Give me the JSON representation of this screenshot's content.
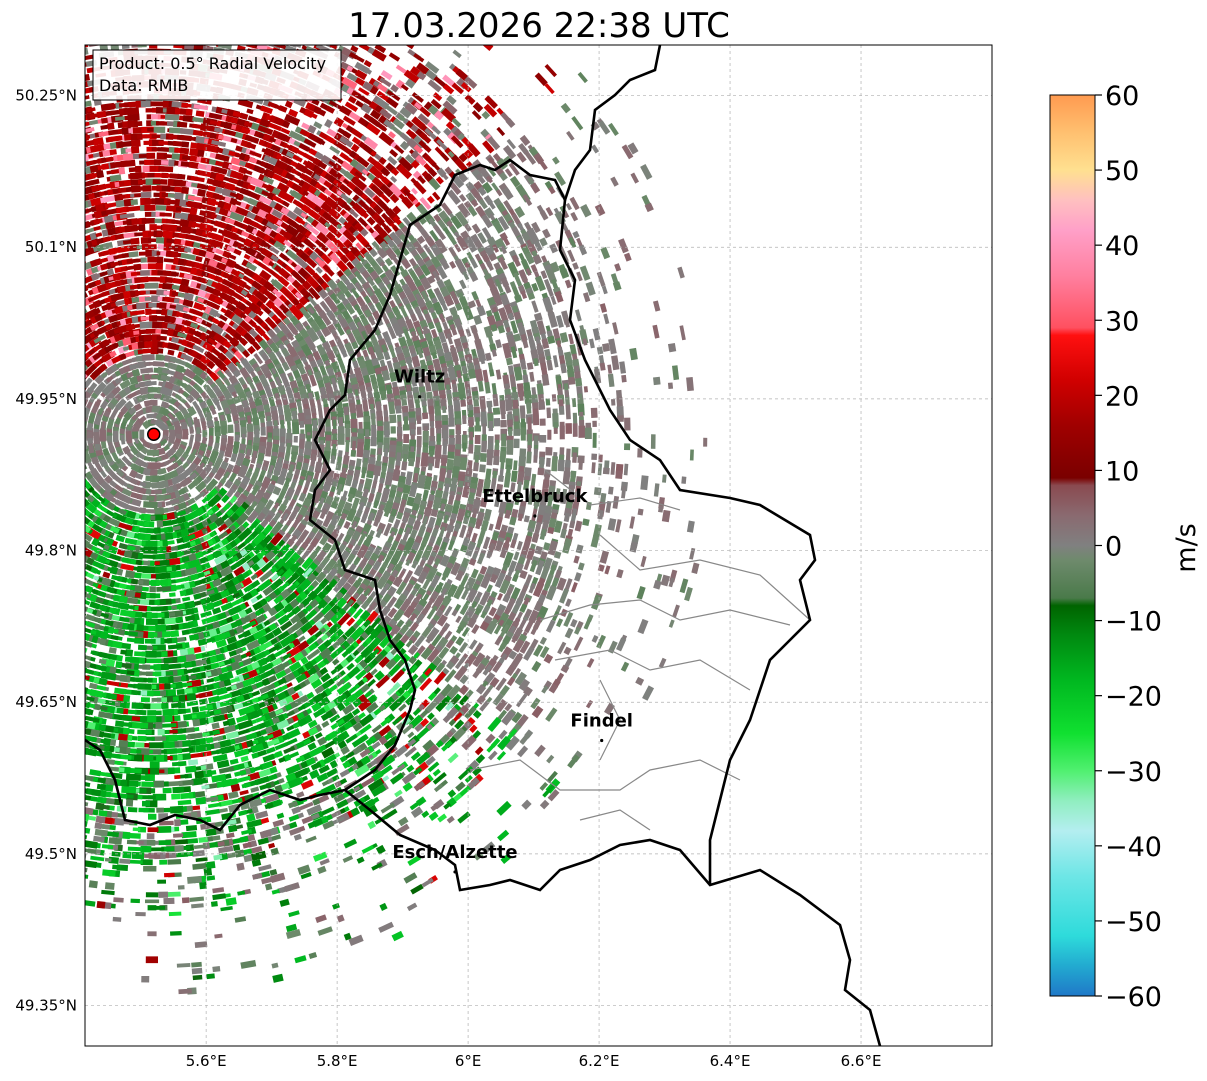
{
  "title": "17.03.2026 22:38 UTC",
  "info_box": {
    "product": "Product: 0.5° Radial Velocity",
    "source": "Data: RMIB"
  },
  "map": {
    "lon_range": [
      5.415,
      6.8
    ],
    "lat_range": [
      49.31,
      50.3
    ],
    "lon_ticks": [
      {
        "value": 5.6,
        "label": "5.6°E"
      },
      {
        "value": 5.8,
        "label": "5.8°E"
      },
      {
        "value": 6.0,
        "label": "6°E"
      },
      {
        "value": 6.2,
        "label": "6.2°E"
      },
      {
        "value": 6.4,
        "label": "6.4°E"
      },
      {
        "value": 6.6,
        "label": "6.6°E"
      }
    ],
    "lat_ticks": [
      {
        "value": 50.25,
        "label": "50.25°N"
      },
      {
        "value": 50.1,
        "label": "50.1°N"
      },
      {
        "value": 49.95,
        "label": "49.95°N"
      },
      {
        "value": 49.8,
        "label": "49.8°N"
      },
      {
        "value": 49.65,
        "label": "49.65°N"
      },
      {
        "value": 49.5,
        "label": "49.5°N"
      },
      {
        "value": 49.35,
        "label": "49.35°N"
      }
    ],
    "grid": true,
    "radar_site": {
      "lon": 5.52,
      "lat": 49.915
    },
    "cities": [
      {
        "name": "Wiltz",
        "lon": 5.926,
        "lat": 49.966
      },
      {
        "name": "Ettelbruck",
        "lon": 6.102,
        "lat": 49.848
      },
      {
        "name": "Findel",
        "lon": 6.204,
        "lat": 49.626
      },
      {
        "name": "Esch/Alzette",
        "lon": 5.98,
        "lat": 49.496
      }
    ],
    "colors": {
      "border": "#000000",
      "canton_lines": "#888888",
      "radar_marker": "#ff0000"
    }
  },
  "colorbar": {
    "unit": "m/s",
    "min": -60,
    "max": 60,
    "ticks": [
      {
        "value": 60,
        "label": "60"
      },
      {
        "value": 50,
        "label": "50"
      },
      {
        "value": 40,
        "label": "40"
      },
      {
        "value": 30,
        "label": "30"
      },
      {
        "value": 20,
        "label": "20"
      },
      {
        "value": 10,
        "label": "10"
      },
      {
        "value": 0,
        "label": "0"
      },
      {
        "value": -10,
        "label": "−10"
      },
      {
        "value": -20,
        "label": "−20"
      },
      {
        "value": -30,
        "label": "−30"
      },
      {
        "value": -40,
        "label": "−40"
      },
      {
        "value": -50,
        "label": "−50"
      },
      {
        "value": -60,
        "label": "−60"
      }
    ],
    "stops": [
      {
        "value": -60,
        "color": "#1f78c8"
      },
      {
        "value": -56,
        "color": "#22aad0"
      },
      {
        "value": -52,
        "color": "#2edbdb"
      },
      {
        "value": -44,
        "color": "#6ee6e6"
      },
      {
        "value": -38,
        "color": "#b4eef0"
      },
      {
        "value": -34,
        "color": "#90eec0"
      },
      {
        "value": -30,
        "color": "#50f070"
      },
      {
        "value": -25,
        "color": "#10e030"
      },
      {
        "value": -18,
        "color": "#00b820"
      },
      {
        "value": -12,
        "color": "#008a10"
      },
      {
        "value": -8,
        "color": "#006400"
      },
      {
        "value": -7,
        "color": "#4a7a4a"
      },
      {
        "value": -2,
        "color": "#6e8a6c"
      },
      {
        "value": 0,
        "color": "#808080"
      },
      {
        "value": 4,
        "color": "#8a6a70"
      },
      {
        "value": 8,
        "color": "#8a4a50"
      },
      {
        "value": 9,
        "color": "#7a0000"
      },
      {
        "value": 16,
        "color": "#a00000"
      },
      {
        "value": 22,
        "color": "#d00000"
      },
      {
        "value": 28,
        "color": "#ff1010"
      },
      {
        "value": 29,
        "color": "#ff5060"
      },
      {
        "value": 36,
        "color": "#ff80a0"
      },
      {
        "value": 42,
        "color": "#ffa0c8"
      },
      {
        "value": 46,
        "color": "#ffc0c0"
      },
      {
        "value": 50,
        "color": "#ffe090"
      },
      {
        "value": 55,
        "color": "#ffc070"
      },
      {
        "value": 60,
        "color": "#ff9a50"
      }
    ]
  }
}
